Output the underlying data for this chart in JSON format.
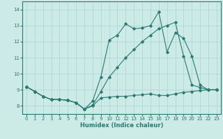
{
  "xlabel": "Humidex (Indice chaleur)",
  "background_color": "#cceae6",
  "grid_color": "#aad4d0",
  "line_color": "#2a7a72",
  "xlim": [
    -0.5,
    23.5
  ],
  "ylim": [
    7.5,
    14.5
  ],
  "xticks": [
    0,
    1,
    2,
    3,
    4,
    5,
    6,
    7,
    8,
    9,
    10,
    11,
    12,
    13,
    14,
    15,
    16,
    17,
    18,
    19,
    20,
    21,
    22,
    23
  ],
  "yticks": [
    8,
    9,
    10,
    11,
    12,
    13,
    14
  ],
  "line1_x": [
    0,
    1,
    2,
    3,
    4,
    5,
    6,
    7,
    8,
    9,
    10,
    11,
    12,
    13,
    14,
    15,
    16,
    17,
    18,
    19,
    20,
    21,
    22,
    23
  ],
  "line1_y": [
    9.2,
    8.9,
    8.6,
    8.4,
    8.4,
    8.35,
    8.2,
    7.8,
    8.0,
    8.5,
    8.55,
    8.6,
    8.6,
    8.65,
    8.7,
    8.75,
    8.65,
    8.65,
    8.75,
    8.85,
    8.9,
    8.95,
    9.0,
    9.0
  ],
  "line2_x": [
    0,
    1,
    2,
    3,
    4,
    5,
    6,
    7,
    8,
    9,
    10,
    11,
    12,
    13,
    14,
    15,
    16,
    17,
    18,
    19,
    20,
    21,
    22,
    23
  ],
  "line2_y": [
    9.2,
    8.9,
    8.6,
    8.4,
    8.4,
    8.35,
    8.2,
    7.8,
    8.05,
    8.9,
    9.8,
    10.4,
    11.0,
    11.5,
    12.0,
    12.4,
    12.8,
    13.0,
    13.2,
    11.1,
    9.3,
    9.15,
    9.0,
    9.0
  ],
  "line3_x": [
    0,
    1,
    2,
    3,
    4,
    5,
    6,
    7,
    8,
    9,
    10,
    11,
    12,
    13,
    14,
    15,
    16,
    17,
    18,
    19,
    20,
    21,
    22,
    23
  ],
  "line3_y": [
    9.2,
    8.9,
    8.6,
    8.4,
    8.4,
    8.35,
    8.2,
    7.8,
    8.3,
    9.8,
    12.1,
    12.4,
    13.1,
    12.8,
    12.85,
    13.0,
    13.85,
    11.35,
    12.55,
    12.2,
    11.1,
    9.3,
    9.0,
    9.0
  ]
}
